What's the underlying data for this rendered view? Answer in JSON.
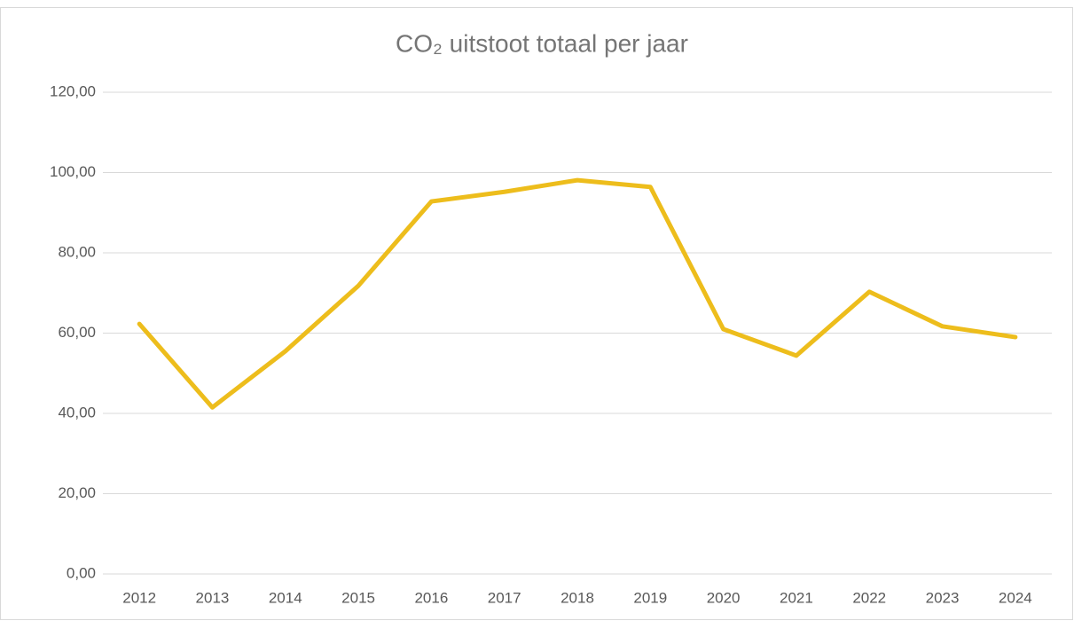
{
  "chart_data": {
    "type": "line",
    "title": "CO₂ uitstoot totaal per jaar",
    "categories": [
      "2012",
      "2013",
      "2014",
      "2015",
      "2016",
      "2017",
      "2018",
      "2019",
      "2020",
      "2021",
      "2022",
      "2023",
      "2024"
    ],
    "values": [
      62.3,
      41.5,
      55.5,
      71.8,
      92.8,
      95.2,
      98.1,
      96.4,
      61.0,
      54.4,
      70.3,
      61.7,
      59.0
    ],
    "color": "#edbd1c",
    "ylim": [
      0,
      120
    ],
    "yticks": [
      {
        "value": 0,
        "label": "0,00"
      },
      {
        "value": 20,
        "label": "20,00"
      },
      {
        "value": 40,
        "label": "40,00"
      },
      {
        "value": 60,
        "label": "60,00"
      },
      {
        "value": 80,
        "label": "80,00"
      },
      {
        "value": 100,
        "label": "100,00"
      },
      {
        "value": 120,
        "label": "120,00"
      }
    ],
    "grid": true
  }
}
